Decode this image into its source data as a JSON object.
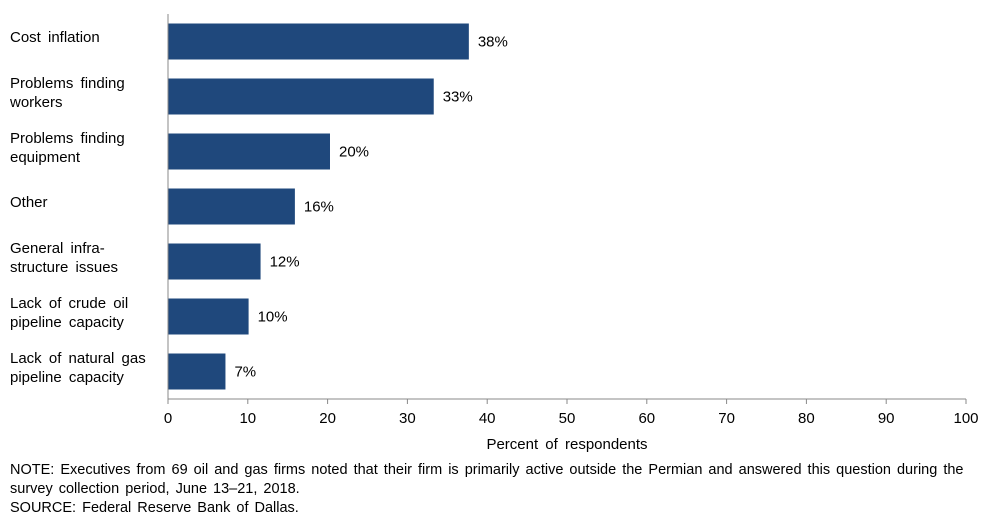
{
  "chart_data": {
    "type": "bar",
    "orientation": "horizontal",
    "categories": [
      "Cost inflation",
      "Problems finding workers",
      "Problems finding equipment",
      "Other",
      "General infra-structure issues",
      "Lack of crude oil pipeline capacity",
      "Lack of natural gas pipeline capacity"
    ],
    "category_lines": [
      [
        "Cost inflation"
      ],
      [
        "Problems finding",
        "workers"
      ],
      [
        "Problems finding",
        "equipment"
      ],
      [
        "Other"
      ],
      [
        "General infra-",
        "structure issues"
      ],
      [
        "Lack of crude oil",
        "pipeline capacity"
      ],
      [
        "Lack of natural gas",
        "pipeline capacity"
      ]
    ],
    "values": [
      37.7,
      33.3,
      20.3,
      15.9,
      11.6,
      10.1,
      7.2
    ],
    "data_labels": [
      "38%",
      "33%",
      "20%",
      "16%",
      "12%",
      "10%",
      "7%"
    ],
    "xlabel": "Percent of respondents",
    "xlim": [
      0,
      100
    ],
    "xticks": [
      0,
      10,
      20,
      30,
      40,
      50,
      60,
      70,
      80,
      90,
      100
    ],
    "bar_color": "#1F487C",
    "grid": false
  },
  "footer": {
    "note": "NOTE: Executives from 69 oil and gas firms noted that their firm is primarily active outside the Permian and answered this question during the survey collection period, June 13–21, 2018.",
    "source": "SOURCE: Federal Reserve Bank of Dallas."
  }
}
